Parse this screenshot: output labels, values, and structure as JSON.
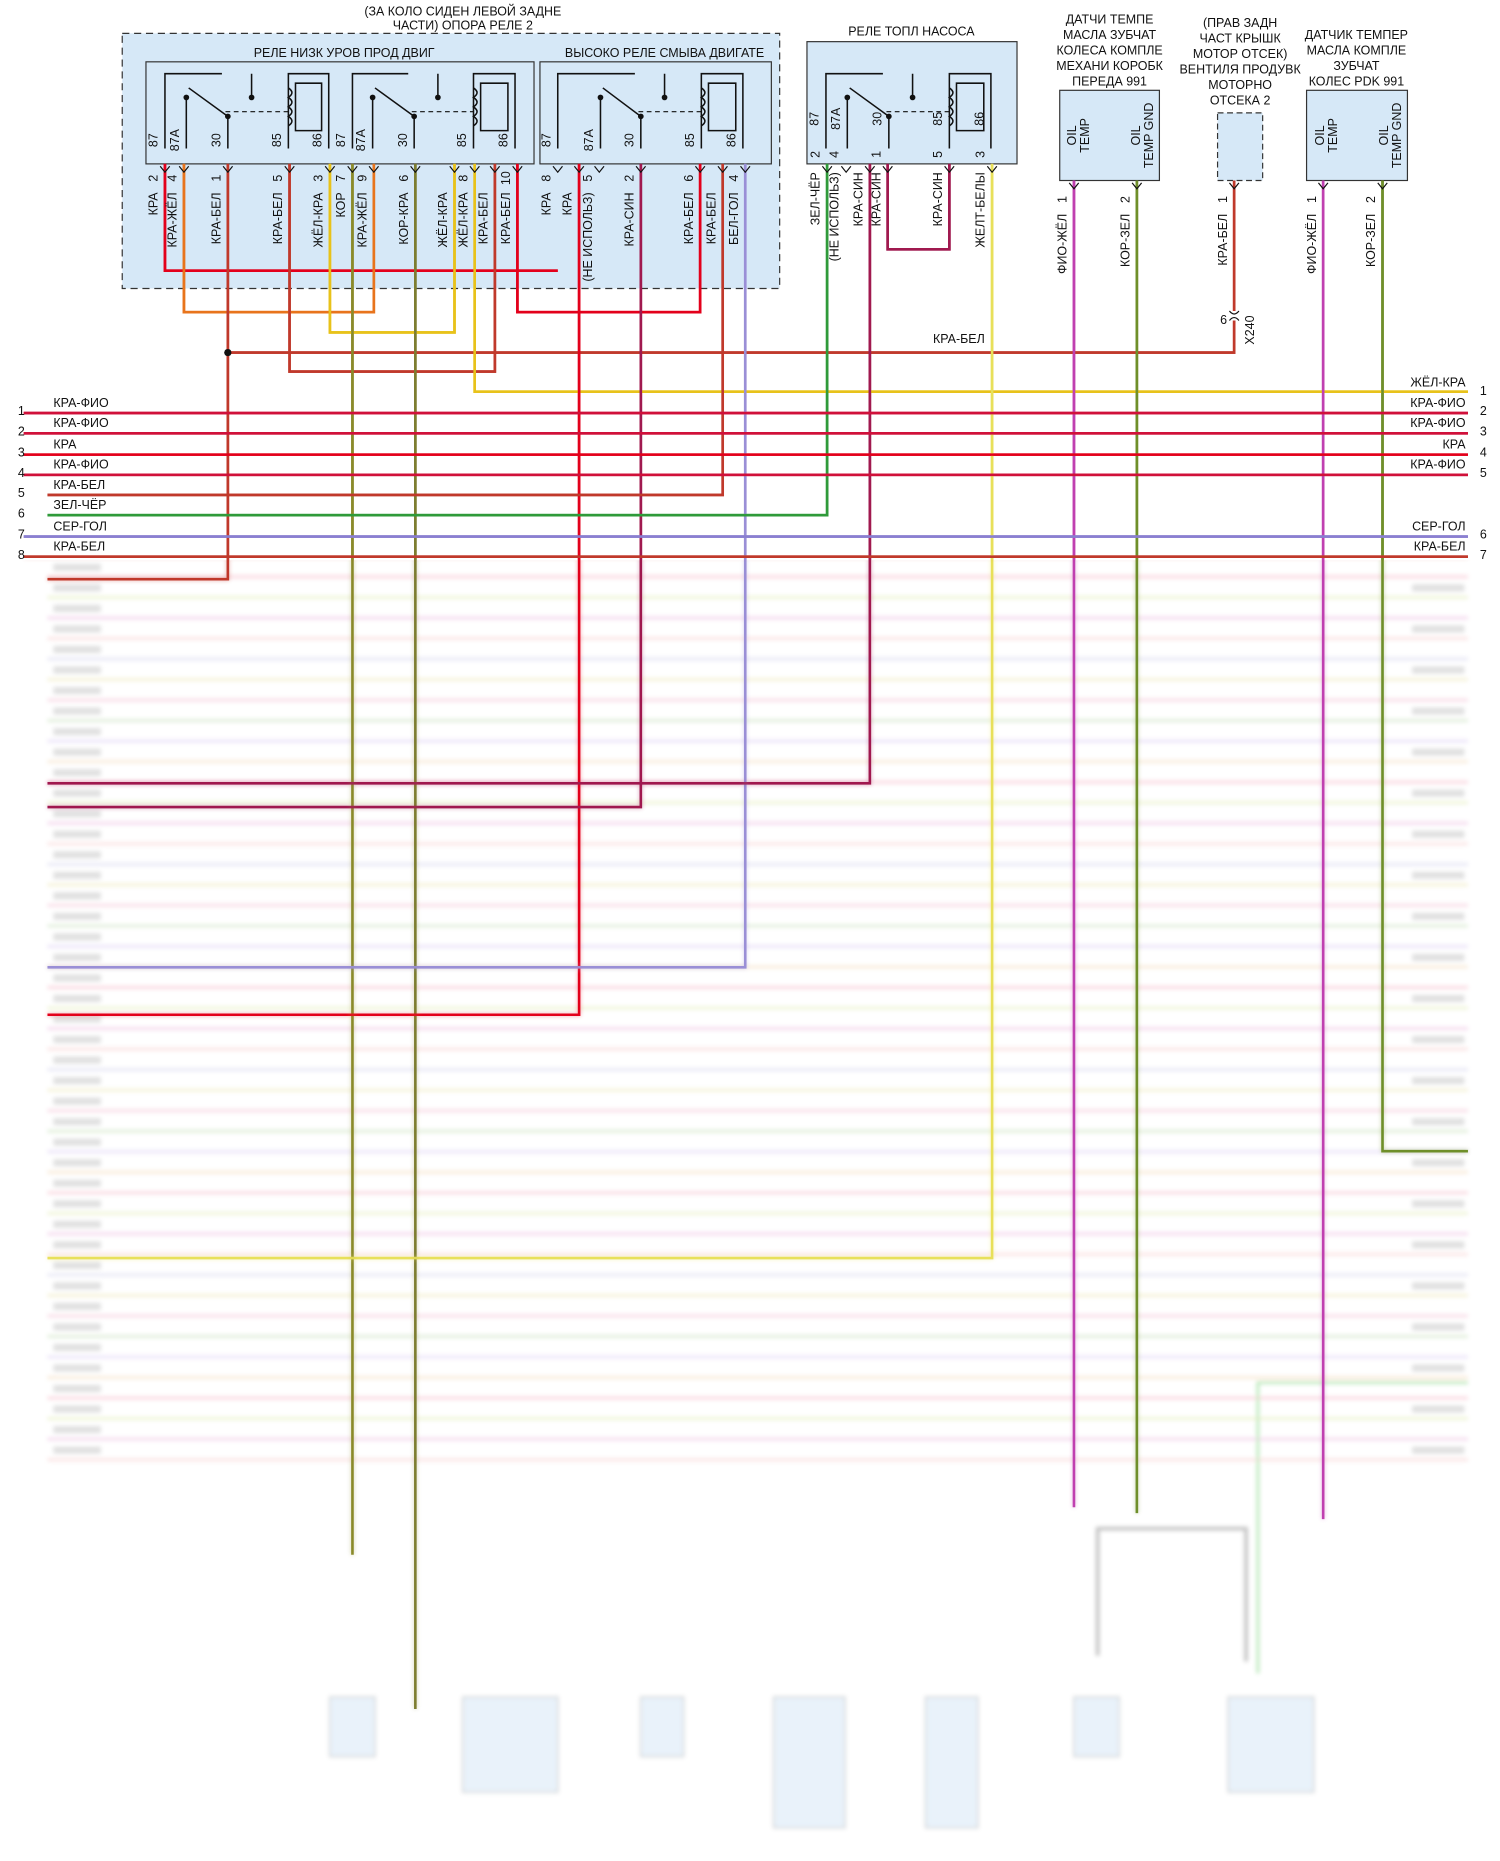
{
  "relay_holder": {
    "title_lines": [
      "(ЗА КОЛО СИДЕН ЛЕВОЙ ЗАДНЕ",
      "ЧАСТИ) ОПОРА РЕЛЕ 2"
    ],
    "relays": [
      {
        "title": "РЕЛЕ НИЗК УРОВ ПРОД ДВИГ",
        "terminals": [
          "87",
          "87A",
          "30",
          "85",
          "86",
          "87",
          "87A",
          "30",
          "85",
          "86"
        ]
      },
      {
        "title": "ВЫСОКО РЕЛЕ СМЫВА ДВИГАТЕ",
        "terminals": [
          "87",
          "87A",
          "30",
          "85",
          "86"
        ]
      }
    ],
    "pins": [
      {
        "number": "2",
        "wire": "КРА"
      },
      {
        "number": "4",
        "wire": "КРА-ЖЁЛ"
      },
      {
        "number": "1",
        "wire": "КРА-БЕЛ"
      },
      {
        "number": "5",
        "wire": "КРА-БЕЛ"
      },
      {
        "number": "3",
        "wire": "ЖЁЛ-КРА"
      },
      {
        "number": "7",
        "wire": "КОР"
      },
      {
        "number": "9",
        "wire": "КРА-ЖЁЛ"
      },
      {
        "number": "6",
        "wire": "КОР-КРА"
      },
      {
        "wire": "ЖЁЛ-КРА"
      },
      {
        "number": "8",
        "wire": "ЖЁЛ-КРА"
      },
      {
        "wire": "КРА-БЕЛ"
      },
      {
        "number": "10",
        "wire": "КРА-БЕЛ"
      },
      {
        "number": "8",
        "wire": "КРА"
      },
      {
        "wire": "КРА"
      },
      {
        "number": "5",
        "wire": "(НЕ ИСПОЛЬЗ)"
      },
      {
        "number": "2",
        "wire": "КРА-СИН"
      },
      {
        "number": "6",
        "wire": "КРА-БЕЛ"
      },
      {
        "wire": "КРА-БЕЛ"
      },
      {
        "number": "4",
        "wire": "БЕЛ-ГОЛ"
      }
    ]
  },
  "fuel_pump_relay": {
    "title": "РЕЛЕ ТОПЛ НАСОСА",
    "terminals": [
      "87",
      "87A",
      "30",
      "85",
      "86"
    ],
    "pins": [
      {
        "number": "2",
        "wire": "ЗЕЛ-ЧЁР"
      },
      {
        "number": "4",
        "wire": "(НЕ ИСПОЛЬЗ)"
      },
      {
        "wire": "КРА-СИН"
      },
      {
        "number": "1",
        "wire": "КРА-СИН"
      },
      {
        "number": "5",
        "wire": "КРА-СИН"
      },
      {
        "number": "3",
        "wire": "ЖЕЛТ-БЕЛЫ"
      }
    ]
  },
  "components": [
    {
      "title_lines": [
        "ДАТЧИ ТЕМПЕ",
        "МАСЛА ЗУБЧАТ",
        "КОЛЕСА КОМПЛЕ",
        "МЕХАНИ КОРОБК",
        "ПЕРЕДА 991"
      ],
      "terminals": [
        [
          "OIL",
          "TEMP"
        ],
        [
          "OIL",
          "TEMP GND"
        ]
      ],
      "pins": [
        {
          "number": "1",
          "wire": "ФИО-ЖЁЛ"
        },
        {
          "number": "2",
          "wire": "КОР-ЗЕЛ"
        }
      ]
    },
    {
      "title_lines": [
        "(ПРАВ ЗАДН",
        "ЧАСТ КРЫШК",
        "МОТОР ОТСЕК)",
        "ВЕНТИЛЯ ПРОДУВК",
        "МОТОРНО",
        "ОТСЕКА 2"
      ],
      "pins": [
        {
          "number": "1",
          "wire": "КРА-БЕЛ"
        }
      ]
    },
    {
      "title_lines": [
        "ДАТЧИК ТЕМПЕР",
        "МАСЛА КОМПЛЕ",
        "ЗУБЧАТ",
        "КОЛЕС PDK 991"
      ],
      "terminals": [
        [
          "OIL",
          "TEMP"
        ],
        [
          "OIL",
          "TEMP GND"
        ]
      ],
      "pins": [
        {
          "number": "1",
          "wire": "ФИО-ЖЁЛ"
        },
        {
          "number": "2",
          "wire": "КОР-ЗЕЛ"
        }
      ]
    }
  ],
  "splice_wire": "КРА-БЕЛ",
  "connector_x240": {
    "pin": "6",
    "name": "X240"
  },
  "left_rows": [
    {
      "pin": "1",
      "wire": "КРА-ФИО"
    },
    {
      "pin": "2",
      "wire": "КРА-ФИО"
    },
    {
      "pin": "3",
      "wire": "КРА"
    },
    {
      "pin": "4",
      "wire": "КРА-ФИО"
    },
    {
      "pin": "5",
      "wire": "КРА-БЕЛ"
    },
    {
      "pin": "6",
      "wire": "ЗЕЛ-ЧЁР"
    },
    {
      "pin": "7",
      "wire": "СЕР-ГОЛ"
    },
    {
      "pin": "8",
      "wire": "КРА-БЕЛ"
    }
  ],
  "right_rows": [
    {
      "pin": "1",
      "wire": "ЖЁЛ-КРА"
    },
    {
      "pin": "2",
      "wire": "КРА-ФИО"
    },
    {
      "pin": "3",
      "wire": "КРА-ФИО"
    },
    {
      "pin": "4",
      "wire": "КРА"
    },
    {
      "pin": "5",
      "wire": "КРА-ФИО"
    },
    {
      "pin": "6",
      "wire": "СЕР-ГОЛ"
    },
    {
      "pin": "7",
      "wire": "КРА-БЕЛ"
    }
  ]
}
